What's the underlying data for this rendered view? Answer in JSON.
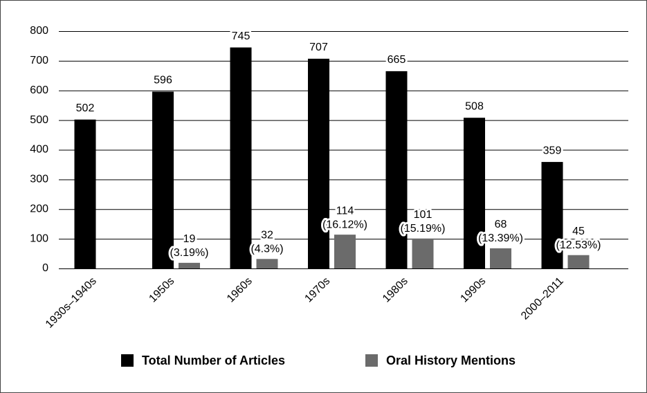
{
  "chart_data": {
    "type": "bar",
    "categories": [
      "1930s–1940s",
      "1950s",
      "1960s",
      "1970s",
      "1980s",
      "1990s",
      "2000–2011"
    ],
    "series": [
      {
        "name": "Total Number of Articles",
        "color": "#000000",
        "values": [
          502,
          596,
          745,
          707,
          665,
          508,
          359
        ]
      },
      {
        "name": "Oral History Mentions",
        "color": "#6b6b6b",
        "values": [
          null,
          19,
          32,
          114,
          101,
          68,
          45
        ],
        "value_labels": [
          null,
          [
            "19",
            "(3.19%)"
          ],
          [
            "32",
            "(4.3%)"
          ],
          [
            "114",
            "(16.12%)"
          ],
          [
            "101",
            "(15.19%)"
          ],
          [
            "68",
            "(13.39%)"
          ],
          [
            "45",
            "(12.53%)"
          ]
        ]
      }
    ],
    "ylim": [
      0,
      800
    ],
    "yticks": [
      0,
      100,
      200,
      300,
      400,
      500,
      600,
      700,
      800
    ],
    "grid": true,
    "legend": "bottom"
  }
}
